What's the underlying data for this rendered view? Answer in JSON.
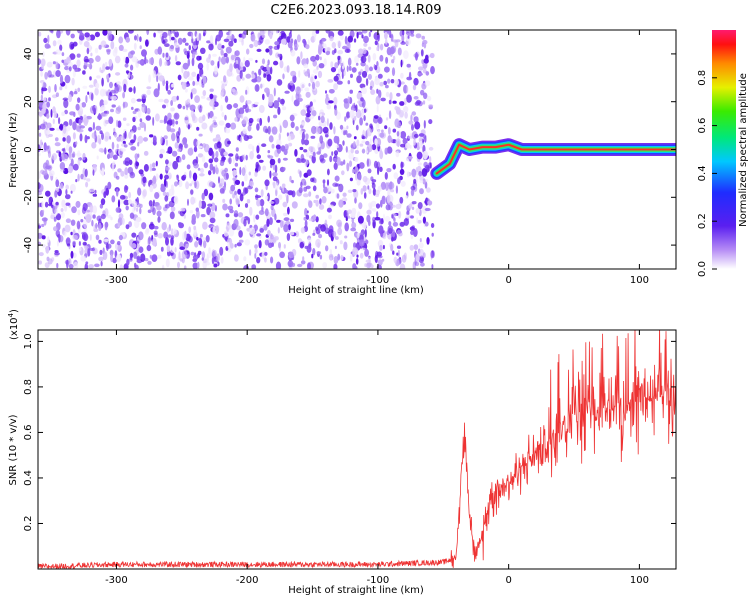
{
  "title": "C2E6.2023.093.18.14.R09",
  "colors": {
    "snr_line": "#ee3333",
    "spectrogram_noise": "#7a2cf0",
    "axis": "#000000"
  },
  "chart_data": [
    {
      "type": "heatmap",
      "xlabel": "Height of straight line (km)",
      "ylabel": "Frequency (Hz)",
      "xlim": [
        -360,
        128
      ],
      "ylim": [
        -50,
        50
      ],
      "x_ticks": [
        -300,
        -200,
        -100,
        0,
        100
      ],
      "x_tick_labels": [
        "-300",
        "-200",
        "-100",
        "0",
        "100"
      ],
      "y_ticks": [
        -40,
        -20,
        0,
        20,
        40
      ],
      "y_tick_labels": [
        "-40",
        "-20",
        "0",
        "20",
        "40"
      ],
      "noise_region_x": [
        -360,
        -58
      ],
      "signal_track": [
        {
          "x": -55,
          "y": -10
        },
        {
          "x": -45,
          "y": -6
        },
        {
          "x": -38,
          "y": 2
        },
        {
          "x": -30,
          "y": 0
        },
        {
          "x": -20,
          "y": 1
        },
        {
          "x": -10,
          "y": 1
        },
        {
          "x": 0,
          "y": 2
        },
        {
          "x": 10,
          "y": 0
        },
        {
          "x": 50,
          "y": 0
        },
        {
          "x": 100,
          "y": 0
        },
        {
          "x": 128,
          "y": 0
        }
      ],
      "colorbar": {
        "label": "Normalized spectral amplitude",
        "ticks": [
          0.0,
          0.2,
          0.4,
          0.6,
          0.8
        ],
        "tick_labels": [
          "0.0",
          "0.2",
          "0.4",
          "0.6",
          "0.8"
        ],
        "range": [
          0,
          1
        ]
      }
    },
    {
      "type": "line",
      "xlabel": "Height of straight line (km)",
      "ylabel": "SNR (10 * v/v)",
      "scale_label": "(x10",
      "scale_exp": "4",
      "scale_close": ")",
      "xlim": [
        -360,
        128
      ],
      "ylim": [
        0,
        1.05
      ],
      "x_ticks": [
        -300,
        -200,
        -100,
        0,
        100
      ],
      "x_tick_labels": [
        "-300",
        "-200",
        "-100",
        "0",
        "100"
      ],
      "y_ticks": [
        0.2,
        0.4,
        0.6,
        0.8,
        1.0
      ],
      "y_tick_labels": [
        "0.2",
        "0.4",
        "0.6",
        "0.8",
        "1.0"
      ],
      "series": [
        {
          "x": [
            -360,
            -300,
            -200,
            -100,
            -50,
            -40,
            -37,
            -35,
            -33,
            -30,
            -27,
            -25,
            -20,
            -15,
            -10,
            0,
            10,
            20,
            30,
            40,
            50,
            60,
            70,
            80,
            90,
            100,
            110,
            120,
            128
          ],
          "y": [
            0.01,
            0.02,
            0.02,
            0.02,
            0.03,
            0.05,
            0.35,
            0.55,
            0.6,
            0.25,
            0.1,
            0.05,
            0.15,
            0.3,
            0.35,
            0.38,
            0.45,
            0.5,
            0.55,
            0.65,
            0.68,
            0.7,
            0.7,
            0.72,
            0.72,
            0.75,
            0.75,
            0.76,
            0.74
          ]
        }
      ]
    }
  ]
}
